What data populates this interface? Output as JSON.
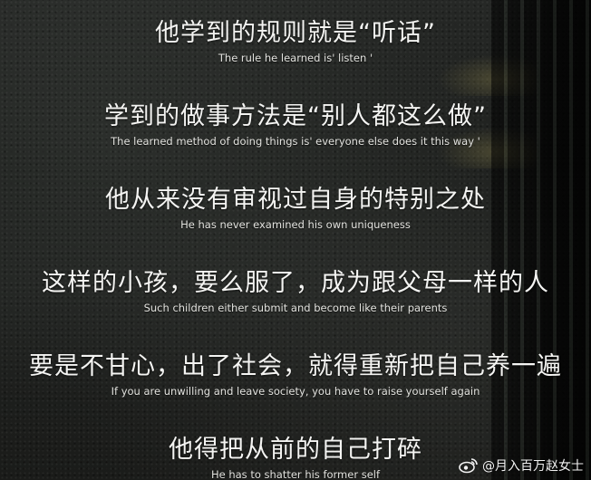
{
  "lines": [
    {
      "zh": "他学到的规则就是“听话”",
      "en": "The rule he learned is' listen '"
    },
    {
      "zh": "学到的做事方法是“别人都这么做”",
      "en": "The learned method of doing things is' everyone else does it this way '"
    },
    {
      "zh": "他从来没有审视过自身的特别之处",
      "en": "He has never examined his own uniqueness"
    },
    {
      "zh": "这样的小孩，要么服了，成为跟父母一样的人",
      "en": "Such children either submit and become like their parents"
    },
    {
      "zh": "要是不甘心，出了社会，就得重新把自己养一遍",
      "en": "If you are unwilling and leave society, you have to raise yourself again"
    },
    {
      "zh": "他得把从前的自己打碎",
      "en": "He has to shatter his former self"
    }
  ],
  "watermark": {
    "text": "@月入百万赵女士",
    "icon": "weibo-icon"
  }
}
